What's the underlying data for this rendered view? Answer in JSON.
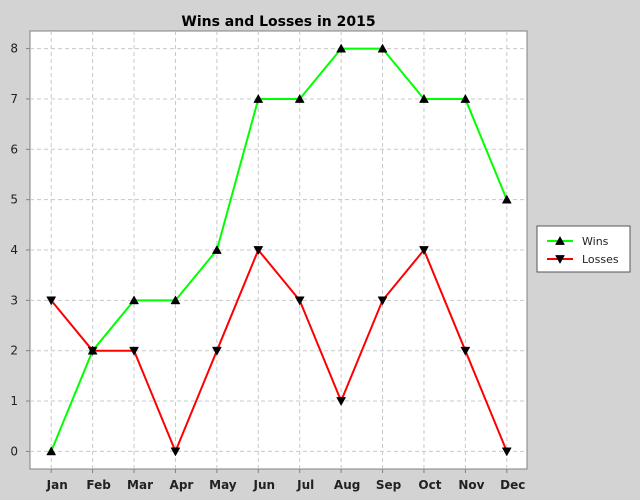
{
  "chart_data": {
    "type": "line",
    "title": "Wins and Losses in 2015",
    "xlabel": "",
    "ylabel": "",
    "categories": [
      "Jan",
      "Feb",
      "Mar",
      "Apr",
      "May",
      "Jun",
      "Jul",
      "Aug",
      "Sep",
      "Oct",
      "Nov",
      "Dec"
    ],
    "ylim": [
      -0.35,
      8.35
    ],
    "yticks": [
      0,
      1,
      2,
      3,
      4,
      5,
      6,
      7,
      8
    ],
    "grid": true,
    "legend_position": "right",
    "series": [
      {
        "name": "Wins",
        "color": "#00ff00",
        "marker": "triangle-up",
        "values": [
          0,
          2,
          3,
          3,
          4,
          7,
          7,
          8,
          8,
          7,
          7,
          5
        ]
      },
      {
        "name": "Losses",
        "color": "#ff0000",
        "marker": "triangle-down",
        "values": [
          3,
          2,
          2,
          0,
          2,
          4,
          3,
          1,
          3,
          4,
          2,
          0
        ]
      }
    ],
    "colors": {
      "background": "#d3d3d3",
      "plot_background": "#ffffff",
      "grid": "#c8c8c8",
      "axis": "#808080"
    }
  }
}
